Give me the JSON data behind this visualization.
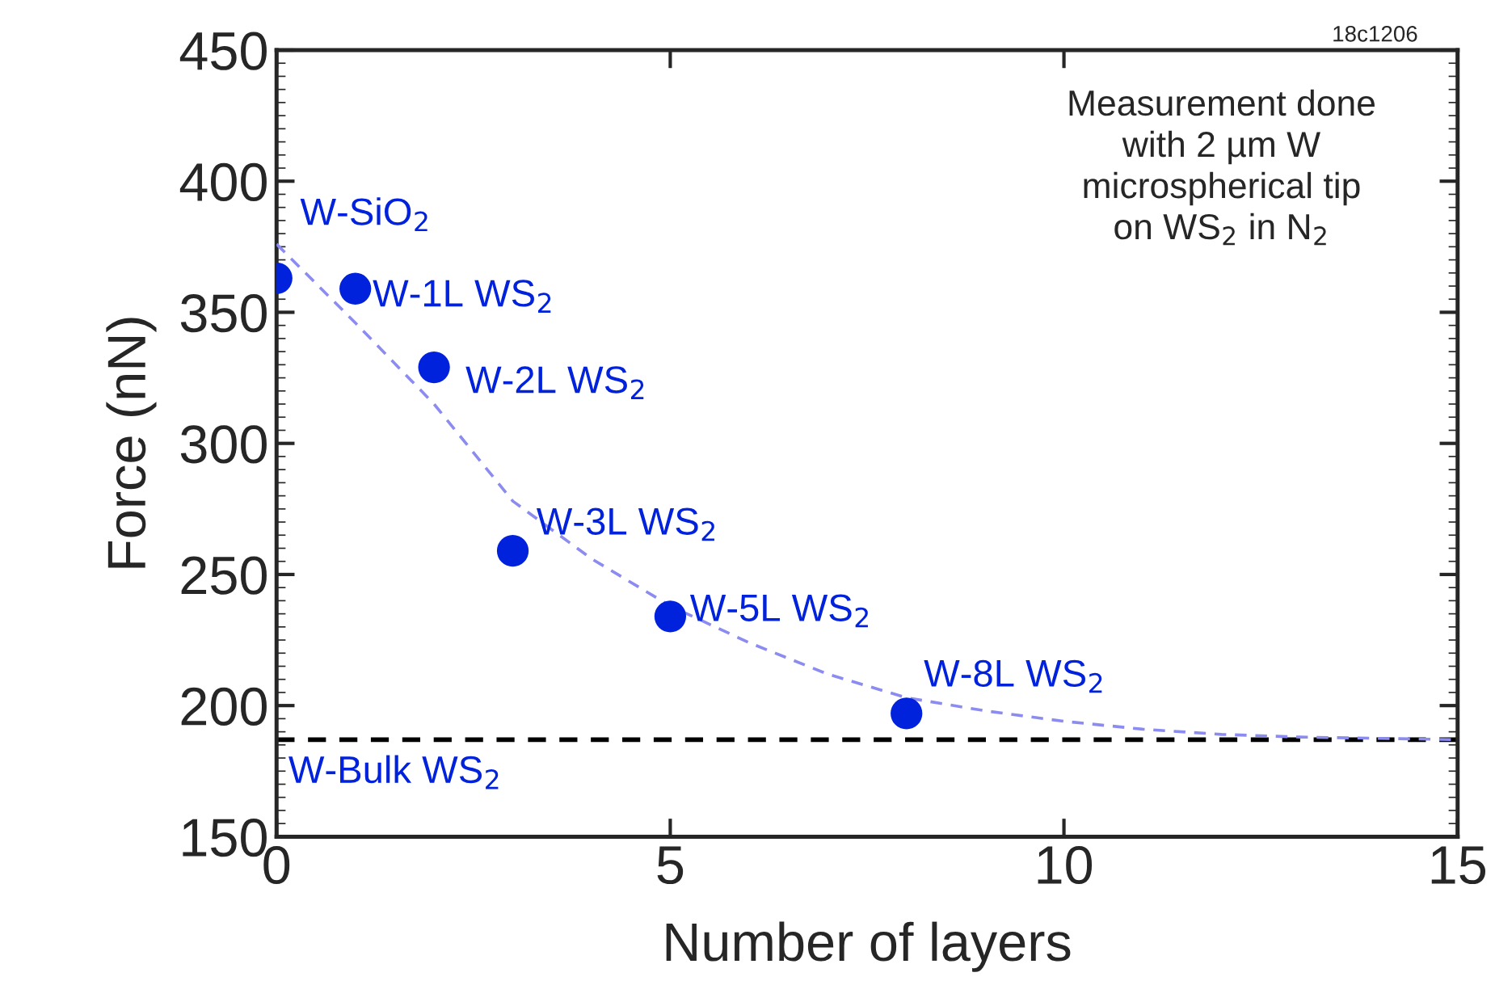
{
  "chart_data": {
    "type": "scatter",
    "xlabel": "Number of layers",
    "ylabel": "Force (nN)",
    "xlim": [
      0,
      15
    ],
    "xticks": [
      0,
      5,
      10,
      15
    ],
    "ylim": [
      150,
      450
    ],
    "yticks": [
      150,
      200,
      250,
      300,
      350,
      400,
      450
    ],
    "grid": false,
    "marker": "circle",
    "series": [
      {
        "color": "#0022dd",
        "x": [
          0,
          1,
          2,
          3,
          5,
          8
        ],
        "values": [
          363,
          359,
          329,
          259,
          234,
          197
        ]
      },
      {
        "type": "line",
        "color": "#8c8cf0",
        "line_style": "dashed",
        "marker": "none",
        "x": [
          0,
          1,
          2,
          3,
          4,
          5,
          6,
          7,
          8,
          9,
          10,
          11,
          12,
          13,
          14,
          15
        ],
        "values": [
          376,
          346,
          315,
          278,
          256,
          238,
          224,
          212,
          203,
          198,
          194,
          191,
          189,
          188,
          187.5,
          187
        ]
      }
    ],
    "ref_lines": [
      {
        "axis": "y",
        "value": 187,
        "label": "W-Bulk WS$_{2}$",
        "color": "#000000",
        "line_style": "dashed"
      }
    ],
    "annotations": [
      {
        "text": "W-SiO$_{2}$",
        "x": 0,
        "y": 363
      },
      {
        "text": "W-1L WS$_{2}$",
        "x": 1,
        "y": 359
      },
      {
        "text": "W-2L WS$_{2}$",
        "x": 2,
        "y": 329
      },
      {
        "text": "W-3L WS$_{2}$",
        "x": 3,
        "y": 259
      },
      {
        "text": "W-5L WS$_{2}$",
        "x": 5,
        "y": 234
      },
      {
        "text": "W-8L WS$_{2}$",
        "x": 8,
        "y": 197
      },
      "Measurement done\nwith 2 µm W\nmicrospherical tip\non WS$_{2}$ in N$_{2}$",
      "18c1206"
    ]
  }
}
